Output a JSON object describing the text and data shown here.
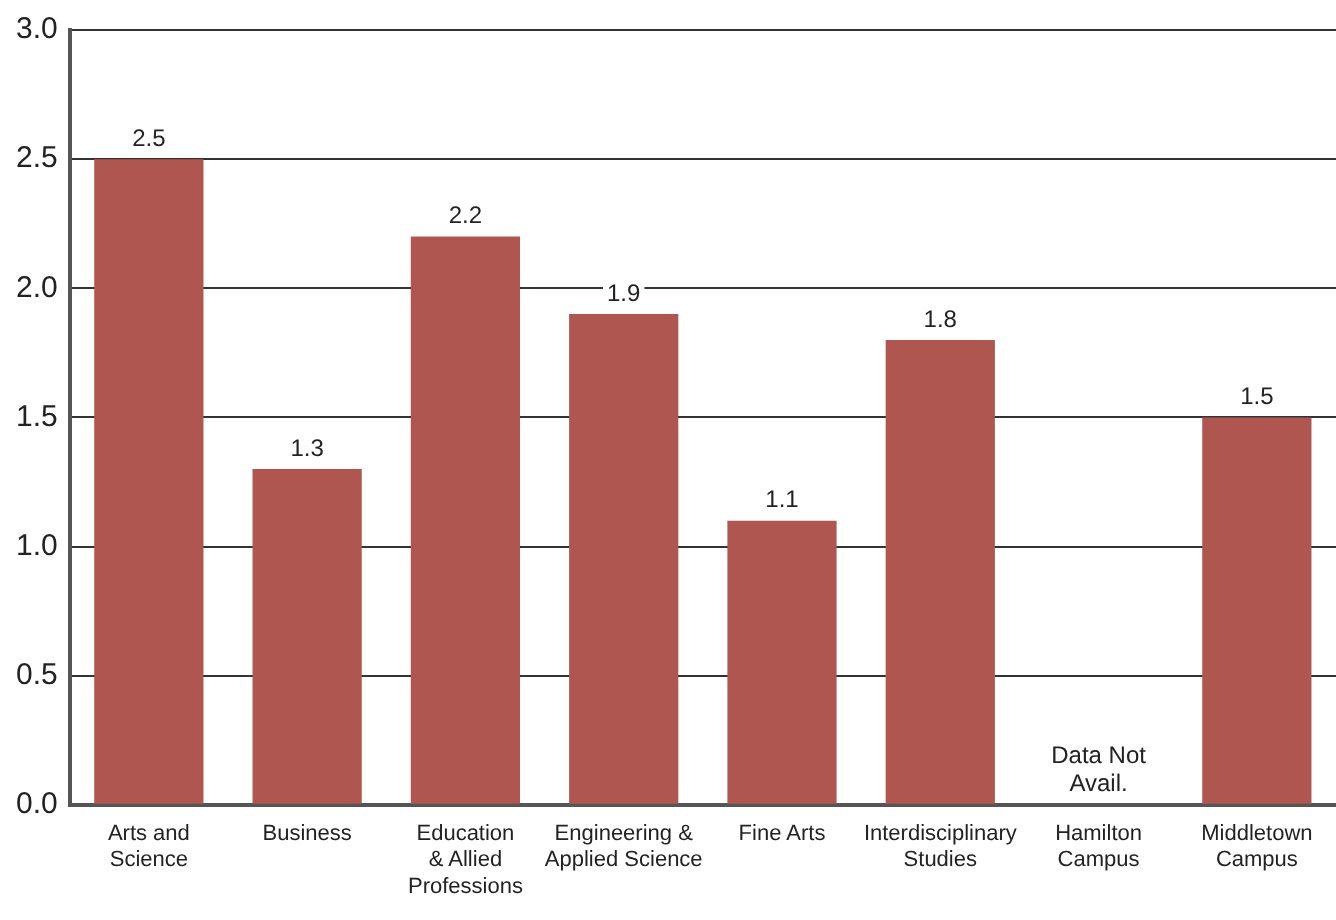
{
  "chart_data": {
    "type": "bar",
    "categories": [
      "Arts and\nScience",
      "Business",
      "Education\n& Allied\nProfessions",
      "Engineering &\nApplied Science",
      "Fine Arts",
      "Interdisciplinary\nStudies",
      "Hamilton\nCampus",
      "Middletown\nCampus"
    ],
    "values": [
      2.5,
      1.3,
      2.2,
      1.9,
      1.1,
      1.8,
      null,
      1.5
    ],
    "color": "#b05650",
    "ylim": [
      0,
      3
    ],
    "yticks": [
      {
        "value": 0,
        "label": "0.0"
      },
      {
        "value": 0.5,
        "label": "0.5"
      },
      {
        "value": 1,
        "label": "1.0"
      },
      {
        "value": 1.5,
        "label": "1.5"
      },
      {
        "value": 2,
        "label": "2.0"
      },
      {
        "value": 2.5,
        "label": "2.5"
      },
      {
        "value": 3,
        "label": "3.0"
      }
    ],
    "grid": "y",
    "legend": false,
    "data_labels": true,
    "annotations": [
      "Data Not Avail."
    ]
  }
}
